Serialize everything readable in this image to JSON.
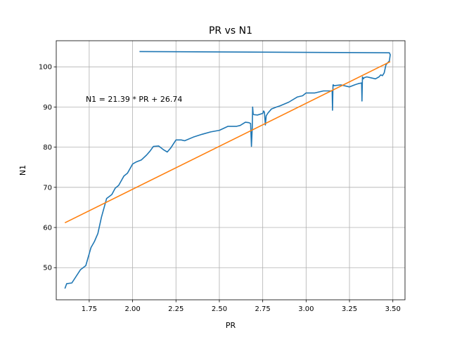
{
  "chart_data": {
    "type": "line",
    "title": "PR vs N1",
    "xlabel": "PR",
    "ylabel": "N1",
    "xlim": [
      1.56,
      3.57
    ],
    "ylim": [
      42,
      106.5
    ],
    "xticks": [
      {
        "value": 1.75,
        "label": "1.75"
      },
      {
        "value": 2.0,
        "label": "2.00"
      },
      {
        "value": 2.25,
        "label": "2.25"
      },
      {
        "value": 2.5,
        "label": "2.50"
      },
      {
        "value": 2.75,
        "label": "2.75"
      },
      {
        "value": 3.0,
        "label": "3.00"
      },
      {
        "value": 3.25,
        "label": "3.25"
      },
      {
        "value": 3.5,
        "label": "3.50"
      }
    ],
    "yticks": [
      {
        "value": 50,
        "label": "50"
      },
      {
        "value": 60,
        "label": "60"
      },
      {
        "value": 70,
        "label": "70"
      },
      {
        "value": 80,
        "label": "80"
      },
      {
        "value": 90,
        "label": "90"
      },
      {
        "value": 100,
        "label": "100"
      }
    ],
    "grid": true,
    "annotation": {
      "text": "N1 = 21.39 * PR + 26.74",
      "x": 1.73,
      "y": 92
    },
    "series": [
      {
        "color": "#1f77b4",
        "x": [
          1.61,
          1.62,
          1.65,
          1.7,
          1.73,
          1.76,
          1.78,
          1.8,
          1.82,
          1.85,
          1.88,
          1.9,
          1.92,
          1.95,
          1.97,
          2.0,
          2.02,
          2.05,
          2.08,
          2.1,
          2.12,
          2.15,
          2.18,
          2.2,
          2.22,
          2.25,
          2.28,
          2.3,
          2.35,
          2.4,
          2.45,
          2.5,
          2.55,
          2.6,
          2.62,
          2.65,
          2.67,
          2.68,
          2.685,
          2.69,
          2.692,
          2.695,
          2.7,
          2.72,
          2.75,
          2.755,
          2.76,
          2.765,
          2.77,
          2.78,
          2.8,
          2.83,
          2.85,
          2.9,
          2.95,
          2.98,
          3.0,
          3.05,
          3.1,
          3.15,
          3.152,
          3.155,
          3.158,
          3.16,
          3.2,
          3.25,
          3.28,
          3.3,
          3.32,
          3.322,
          3.325,
          3.33,
          3.335,
          3.35,
          3.38,
          3.4,
          3.42,
          3.43,
          3.44,
          3.45,
          3.46,
          3.47,
          3.48,
          3.485,
          3.48,
          3.475,
          3.47,
          2.04
        ],
        "y": [
          44.8,
          46,
          46.2,
          49.5,
          50.5,
          55,
          56.5,
          58.5,
          62.5,
          67.2,
          68.2,
          69.8,
          70.5,
          72.8,
          73.5,
          75.8,
          76.3,
          76.8,
          78,
          79,
          80.2,
          80.3,
          79.3,
          78.8,
          79.8,
          81.8,
          81.8,
          81.6,
          82.5,
          83.2,
          83.8,
          84.2,
          85.2,
          85.2,
          85.4,
          86.2,
          86.1,
          85.9,
          80.2,
          85,
          90,
          88.2,
          88.1,
          88,
          88.4,
          89,
          88.7,
          85.5,
          87.8,
          88.5,
          89.5,
          90,
          90.3,
          91.2,
          92.5,
          92.8,
          93.5,
          93.5,
          94,
          94,
          89.2,
          95.5,
          95.5,
          95.3,
          95.5,
          95,
          95.5,
          95.8,
          96,
          91.5,
          97.5,
          97,
          97.3,
          97.5,
          97.2,
          97,
          97.5,
          98,
          97.8,
          98.5,
          100.5,
          101,
          101.5,
          103,
          103.5,
          103.5,
          103.5,
          103.8
        ]
      },
      {
        "color": "#ff7f0e",
        "x": [
          1.61,
          3.485
        ],
        "y": [
          61.18,
          101.29
        ]
      }
    ]
  }
}
